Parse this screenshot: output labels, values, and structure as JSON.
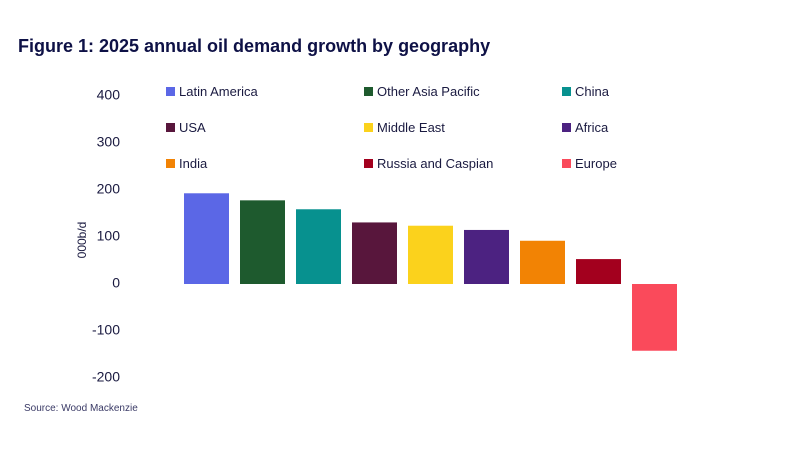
{
  "title": "Figure 1: 2025 annual oil demand growth by geography",
  "source": "Source: Wood Mackenzie",
  "chart_data": {
    "type": "bar",
    "title": "Figure 1: 2025 annual oil demand growth by geography",
    "ylabel": "000b/d",
    "xlabel": "",
    "ylim": [
      -200,
      400
    ],
    "yticks": [
      400,
      300,
      200,
      100,
      0,
      -100,
      -200
    ],
    "grid": false,
    "legend_position": "top",
    "categories": [
      "Latin America",
      "Other Asia Pacific",
      "China",
      "USA",
      "Middle East",
      "Africa",
      "India",
      "Russia and Caspian",
      "Europe"
    ],
    "values": [
      193,
      178,
      159,
      131,
      124,
      115,
      92,
      53,
      -142
    ],
    "colors": [
      "#5b67e6",
      "#1e5a2e",
      "#07918f",
      "#58163c",
      "#fbd21c",
      "#4c2281",
      "#f28304",
      "#a3001e",
      "#fa4a5b"
    ]
  }
}
